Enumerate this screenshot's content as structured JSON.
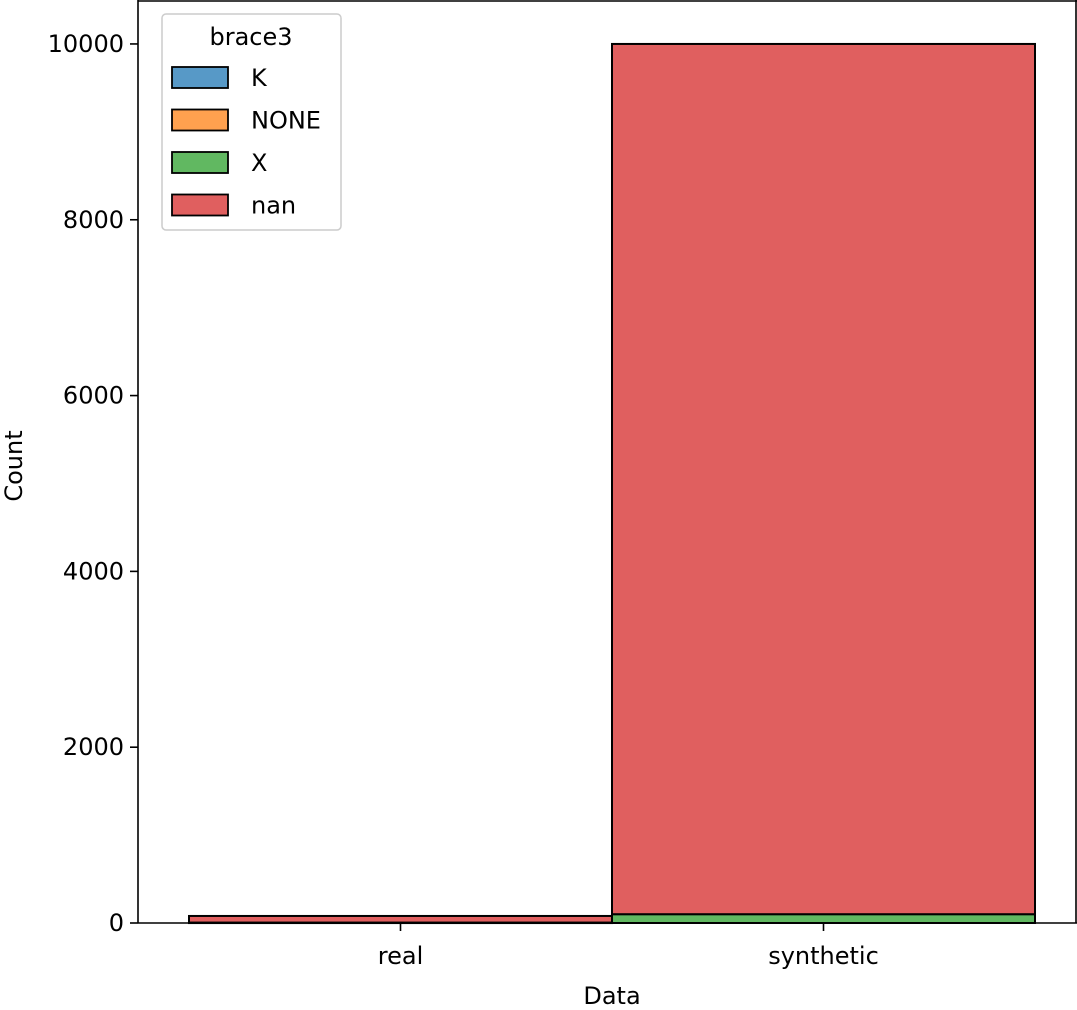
{
  "chart_data": {
    "type": "bar",
    "stacked": true,
    "title": "",
    "xlabel": "Data",
    "ylabel": "Count",
    "categories": [
      "real",
      "synthetic"
    ],
    "ylim": [
      0,
      10500
    ],
    "yticks": [
      0,
      2000,
      4000,
      6000,
      8000,
      10000
    ],
    "grid": false,
    "legend": {
      "title": "brace3",
      "position": "top-left",
      "entries": [
        "K",
        "NONE",
        "X",
        "nan"
      ]
    },
    "series": [
      {
        "name": "K",
        "color": "#5799c7",
        "values": [
          0,
          0
        ]
      },
      {
        "name": "NONE",
        "color": "#ffa14f",
        "values": [
          0,
          0
        ]
      },
      {
        "name": "X",
        "color": "#61b861",
        "values": [
          5,
          100
        ]
      },
      {
        "name": "nan",
        "color": "#e05f5f",
        "values": [
          75,
          9900
        ]
      }
    ]
  }
}
